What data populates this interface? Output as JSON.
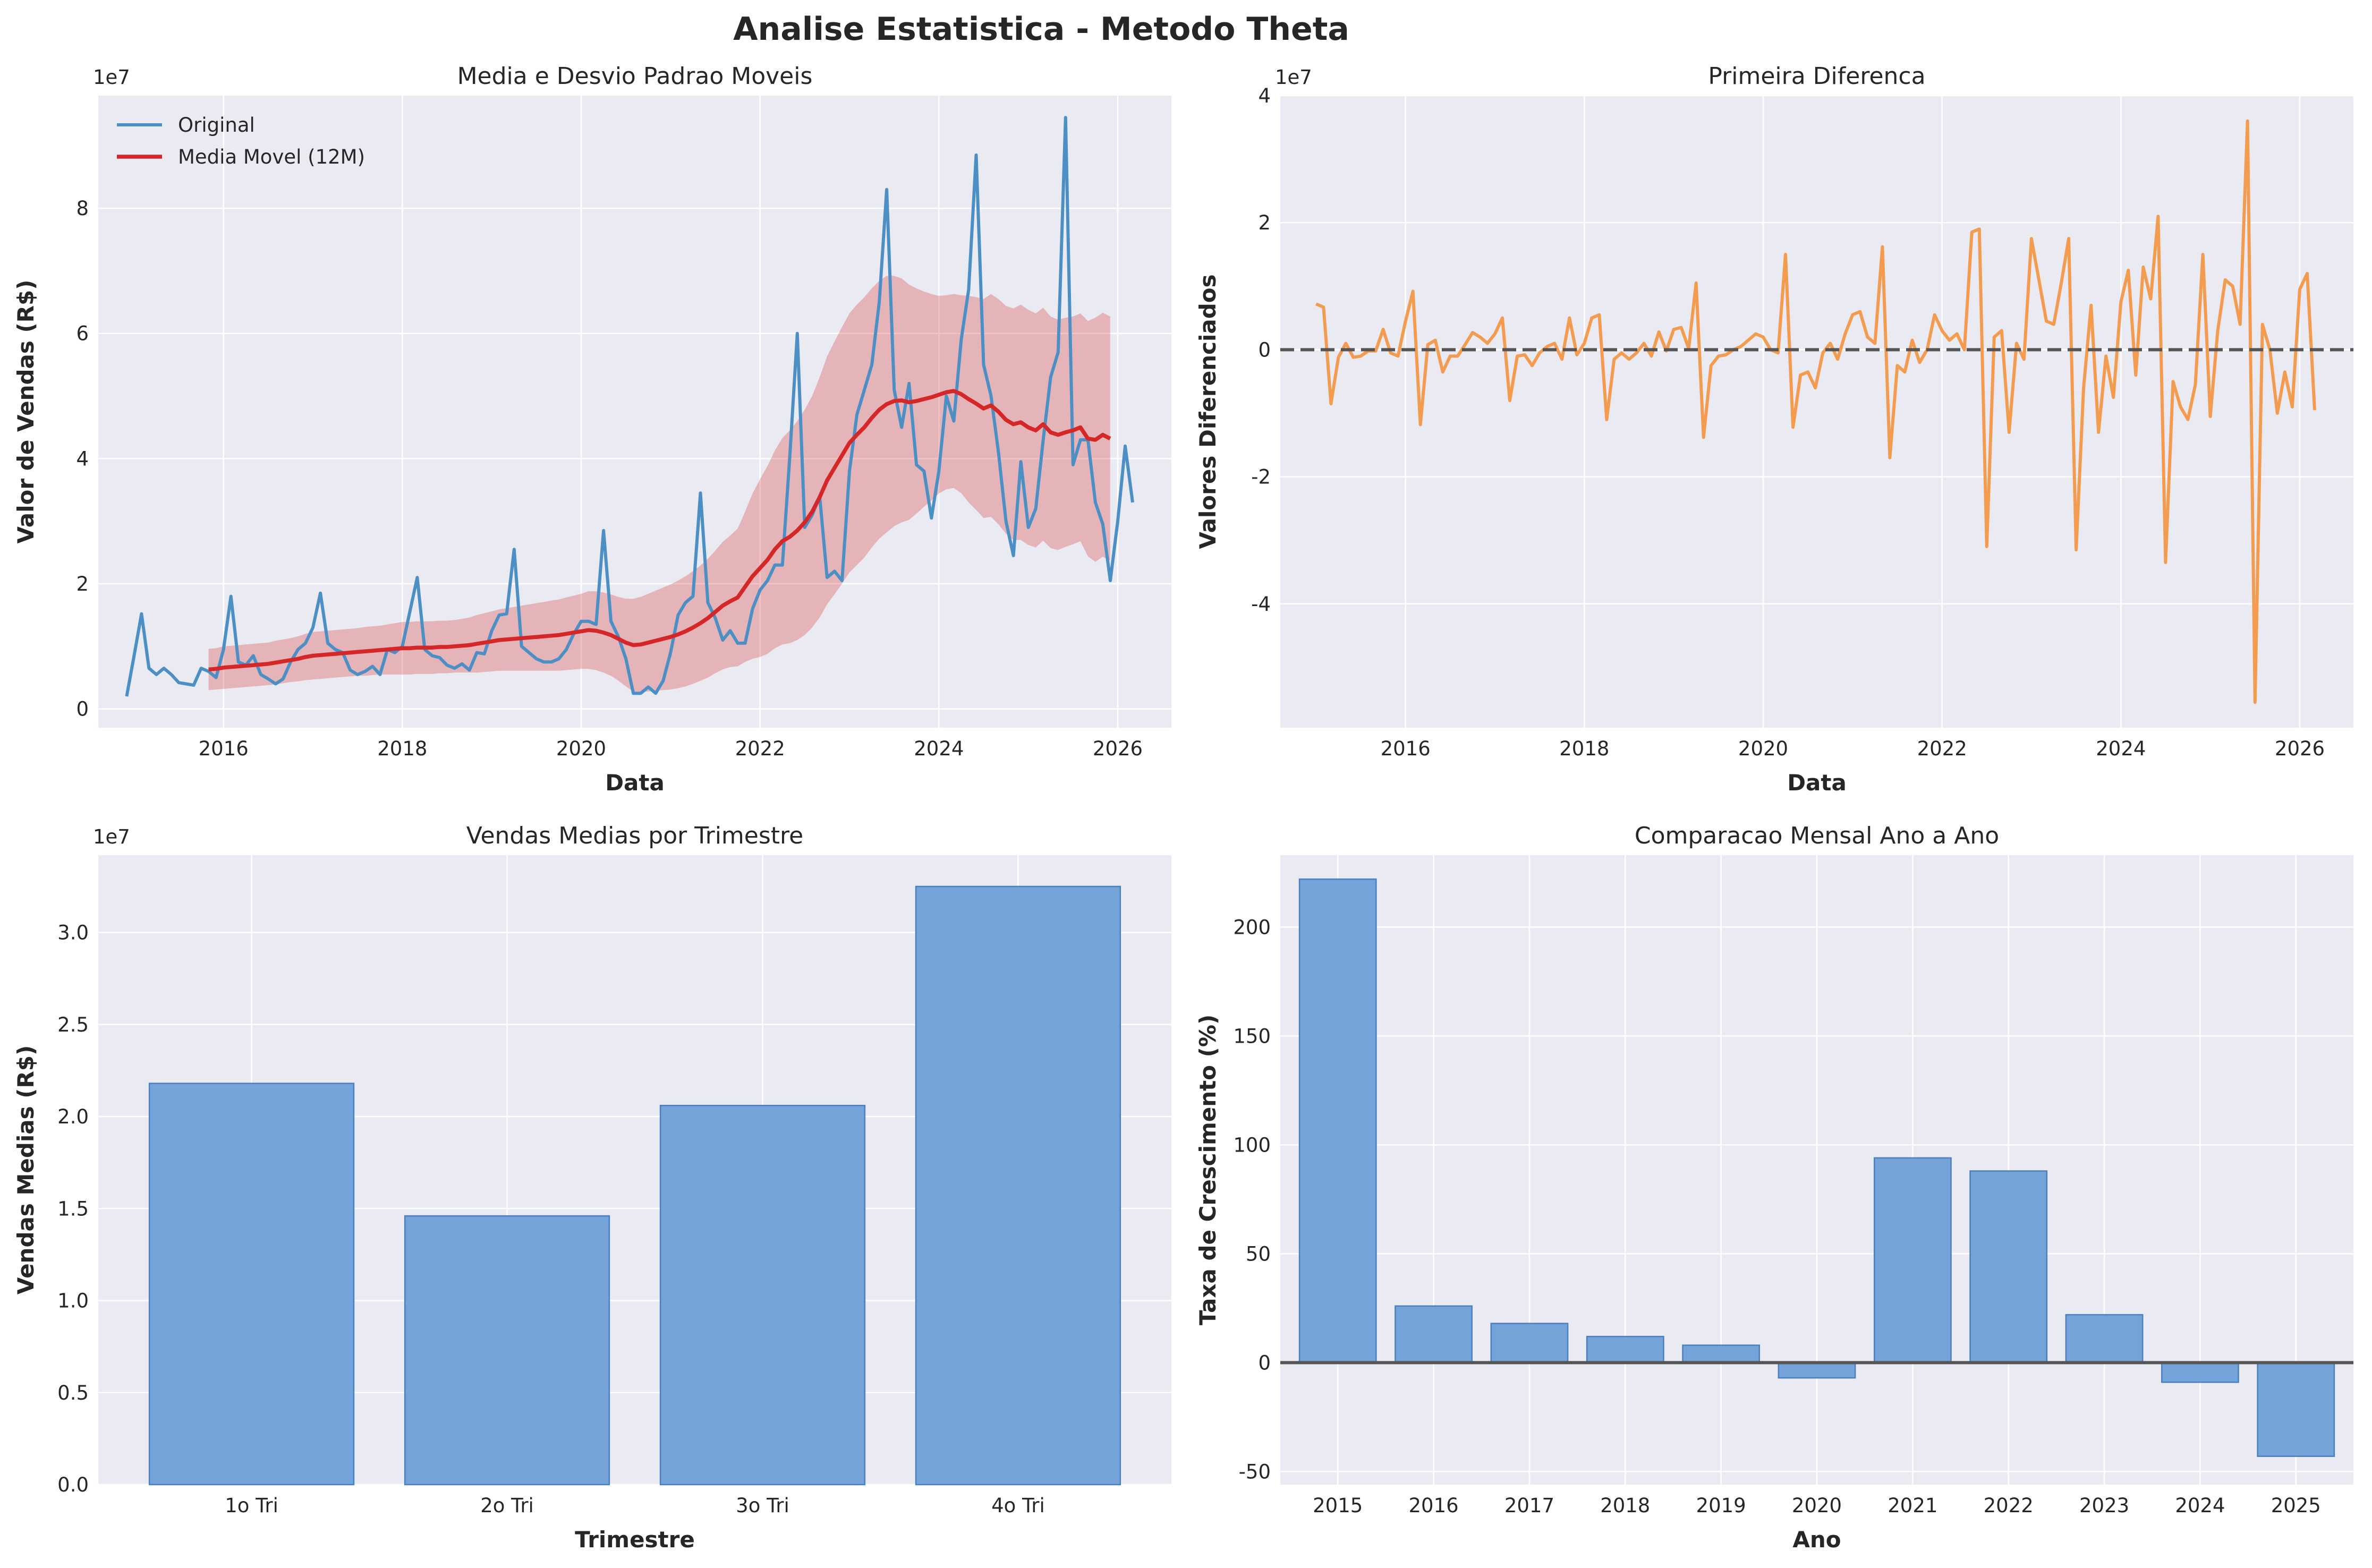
{
  "suptitle": "Analise Estatistica - Metodo Theta",
  "chart_data": [
    {
      "id": "rolling",
      "type": "line",
      "title": "Media e Desvio Padrao Moveis",
      "xlabel": "Data",
      "ylabel": "Valor de Vendas (R$)",
      "y_offset_label": "1e7",
      "x_ticks": [
        2016,
        2018,
        2020,
        2022,
        2024,
        2026
      ],
      "y_ticks": [
        0,
        2,
        4,
        6,
        8
      ],
      "xlim": [
        2014.6,
        2026.6
      ],
      "ylim": [
        -0.3,
        9.8
      ],
      "grid": true,
      "legend_position": "upper left",
      "series": [
        {
          "name": "Original",
          "color": "#4c8fc4",
          "x_start": 2014.917,
          "x_step": 0.08333,
          "values": [
            0.2,
            0.85,
            1.52,
            0.65,
            0.55,
            0.65,
            0.55,
            0.42,
            0.4,
            0.38,
            0.65,
            0.6,
            0.5,
            0.95,
            1.8,
            0.75,
            0.7,
            0.85,
            0.55,
            0.48,
            0.4,
            0.48,
            0.75,
            0.95,
            1.05,
            1.3,
            1.85,
            1.05,
            0.95,
            0.9,
            0.62,
            0.55,
            0.6,
            0.68,
            0.55,
            0.95,
            0.9,
            1.0,
            1.55,
            2.1,
            0.95,
            0.85,
            0.82,
            0.7,
            0.65,
            0.72,
            0.62,
            0.9,
            0.88,
            1.25,
            1.5,
            1.52,
            2.55,
            1.0,
            0.9,
            0.8,
            0.75,
            0.75,
            0.8,
            0.95,
            1.2,
            1.4,
            1.4,
            1.35,
            2.85,
            1.4,
            1.15,
            0.8,
            0.25,
            0.25,
            0.35,
            0.25,
            0.45,
            0.9,
            1.5,
            1.7,
            1.8,
            3.45,
            1.7,
            1.45,
            1.1,
            1.25,
            1.05,
            1.05,
            1.6,
            1.9,
            2.05,
            2.3,
            2.3,
            4.05,
            6.0,
            2.9,
            3.1,
            3.4,
            2.1,
            2.2,
            2.05,
            3.8,
            4.7,
            5.1,
            5.5,
            6.5,
            8.3,
            5.1,
            4.5,
            5.2,
            3.9,
            3.8,
            3.05,
            3.8,
            5.0,
            4.6,
            5.9,
            6.7,
            8.85,
            5.5,
            5.0,
            4.1,
            3.0,
            2.45,
            3.95,
            2.9,
            3.2,
            4.3,
            5.3,
            5.7,
            9.45,
            3.9,
            4.3,
            4.3,
            3.3,
            2.95,
            2.05,
            3.0,
            4.2,
            3.3
          ]
        },
        {
          "name": "Media Movel (12M)",
          "color": "#d62728",
          "x_start": 2015.833,
          "x_step": 0.08333,
          "values": [
            0.63,
            0.64,
            0.66,
            0.67,
            0.68,
            0.69,
            0.7,
            0.71,
            0.72,
            0.74,
            0.76,
            0.78,
            0.8,
            0.83,
            0.85,
            0.86,
            0.87,
            0.88,
            0.89,
            0.9,
            0.91,
            0.92,
            0.93,
            0.94,
            0.95,
            0.96,
            0.97,
            0.97,
            0.98,
            0.98,
            0.98,
            0.99,
            0.99,
            1.0,
            1.01,
            1.02,
            1.04,
            1.06,
            1.08,
            1.1,
            1.11,
            1.12,
            1.13,
            1.14,
            1.15,
            1.16,
            1.17,
            1.18,
            1.2,
            1.22,
            1.24,
            1.26,
            1.25,
            1.22,
            1.18,
            1.12,
            1.06,
            1.02,
            1.03,
            1.06,
            1.09,
            1.12,
            1.15,
            1.19,
            1.24,
            1.3,
            1.37,
            1.45,
            1.55,
            1.65,
            1.72,
            1.78,
            1.95,
            2.12,
            2.25,
            2.38,
            2.55,
            2.68,
            2.75,
            2.85,
            2.98,
            3.15,
            3.38,
            3.65,
            3.85,
            4.05,
            4.25,
            4.38,
            4.5,
            4.65,
            4.78,
            4.87,
            4.92,
            4.93,
            4.9,
            4.92,
            4.95,
            4.98,
            5.02,
            5.06,
            5.08,
            5.03,
            4.95,
            4.88,
            4.8,
            4.85,
            4.75,
            4.62,
            4.55,
            4.58,
            4.5,
            4.45,
            4.55,
            4.42,
            4.38,
            4.42,
            4.45,
            4.5,
            4.32,
            4.3,
            4.38,
            4.32
          ]
        }
      ],
      "band": {
        "name": "Desvio Padrao",
        "color": "#d62728",
        "x_start": 2015.833,
        "x_step": 0.08333,
        "halfwidth": [
          0.33,
          0.33,
          0.34,
          0.34,
          0.34,
          0.34,
          0.34,
          0.34,
          0.34,
          0.35,
          0.35,
          0.35,
          0.36,
          0.37,
          0.38,
          0.38,
          0.38,
          0.38,
          0.38,
          0.38,
          0.38,
          0.39,
          0.39,
          0.39,
          0.4,
          0.41,
          0.42,
          0.42,
          0.42,
          0.42,
          0.42,
          0.42,
          0.42,
          0.42,
          0.43,
          0.44,
          0.46,
          0.47,
          0.48,
          0.49,
          0.5,
          0.51,
          0.52,
          0.53,
          0.54,
          0.55,
          0.56,
          0.57,
          0.58,
          0.59,
          0.6,
          0.62,
          0.63,
          0.64,
          0.65,
          0.67,
          0.7,
          0.74,
          0.76,
          0.78,
          0.8,
          0.82,
          0.84,
          0.86,
          0.88,
          0.9,
          0.92,
          0.95,
          0.98,
          1.02,
          1.05,
          1.1,
          1.2,
          1.32,
          1.42,
          1.5,
          1.58,
          1.65,
          1.7,
          1.75,
          1.8,
          1.85,
          1.92,
          1.98,
          2.02,
          2.05,
          2.07,
          2.08,
          2.08,
          2.07,
          2.06,
          2.05,
          2.0,
          1.95,
          1.88,
          1.8,
          1.72,
          1.65,
          1.58,
          1.55,
          1.55,
          1.58,
          1.65,
          1.7,
          1.75,
          1.78,
          1.8,
          1.82,
          1.85,
          1.88,
          1.88,
          1.87,
          1.86,
          1.85,
          1.84,
          1.83,
          1.82,
          1.82,
          1.88,
          1.95,
          1.95,
          1.95
        ]
      }
    },
    {
      "id": "diff",
      "type": "line",
      "title": "Primeira Diferenca",
      "xlabel": "Data",
      "ylabel": "Valores Diferenciados",
      "y_offset_label": "1e7",
      "x_ticks": [
        2016,
        2018,
        2020,
        2022,
        2024,
        2026
      ],
      "y_ticks": [
        -4,
        -2,
        0,
        2,
        4
      ],
      "xlim": [
        2014.6,
        2026.6
      ],
      "ylim": [
        -5.95,
        4.0
      ],
      "grid": true,
      "zero_line_color": "#555555",
      "series": [
        {
          "name": "Primeira Diferenca",
          "color": "#f39c4f",
          "x_start": 2015.0,
          "x_step": 0.08333,
          "values": [
            0.72,
            0.67,
            -0.85,
            -0.12,
            0.1,
            -0.12,
            -0.1,
            -0.02,
            -0.02,
            0.32,
            -0.05,
            -0.1,
            0.45,
            0.92,
            -1.18,
            0.08,
            0.15,
            -0.35,
            -0.1,
            -0.1,
            0.08,
            0.27,
            0.2,
            0.1,
            0.25,
            0.5,
            -0.8,
            -0.1,
            -0.08,
            -0.25,
            -0.05,
            0.05,
            0.1,
            -0.15,
            0.5,
            -0.08,
            0.1,
            0.5,
            0.55,
            -1.1,
            -0.15,
            -0.05,
            -0.15,
            -0.05,
            0.1,
            -0.1,
            0.28,
            -0.02,
            0.32,
            0.35,
            0.02,
            1.05,
            -1.38,
            -0.25,
            -0.1,
            -0.08,
            0.0,
            0.05,
            0.15,
            0.25,
            0.2,
            0.0,
            -0.05,
            1.5,
            -1.22,
            -0.4,
            -0.35,
            -0.6,
            -0.05,
            0.1,
            -0.15,
            0.25,
            0.55,
            0.6,
            0.2,
            0.1,
            1.62,
            -1.7,
            -0.25,
            -0.35,
            0.15,
            -0.2,
            0.0,
            0.55,
            0.3,
            0.15,
            0.25,
            0.0,
            1.85,
            1.9,
            -3.1,
            0.2,
            0.3,
            -1.3,
            0.1,
            -0.15,
            1.75,
            1.1,
            0.45,
            0.4,
            1.05,
            1.75,
            -3.15,
            -0.6,
            0.7,
            -1.3,
            -0.1,
            -0.75,
            0.75,
            1.25,
            -0.4,
            1.3,
            0.8,
            2.1,
            -3.35,
            -0.5,
            -0.9,
            -1.1,
            -0.55,
            1.5,
            -1.05,
            0.3,
            1.1,
            1.0,
            0.4,
            3.6,
            -5.55,
            0.4,
            0.0,
            -1.0,
            -0.35,
            -0.9,
            0.95,
            1.2,
            -0.95
          ]
        }
      ]
    },
    {
      "id": "quarter",
      "type": "bar",
      "title": "Vendas Medias por Trimestre",
      "xlabel": "Trimestre",
      "ylabel": "Vendas Medias (R$)",
      "y_offset_label": "1e7",
      "categories": [
        "1o Tri",
        "2o Tri",
        "3o Tri",
        "4o Tri"
      ],
      "values": [
        2.18,
        1.46,
        2.06,
        3.25
      ],
      "y_ticks": [
        "0.0",
        "0.5",
        "1.0",
        "1.5",
        "2.0",
        "2.5",
        "3.0"
      ],
      "ylim": [
        0,
        3.42
      ],
      "grid": true,
      "color": "#74a3d9"
    },
    {
      "id": "yoy",
      "type": "bar",
      "title": "Comparacao Mensal Ano a Ano",
      "xlabel": "Ano",
      "ylabel": "Taxa de Crescimento (%)",
      "categories": [
        "2015",
        "2016",
        "2017",
        "2018",
        "2019",
        "2020",
        "2021",
        "2022",
        "2023",
        "2024",
        "2025"
      ],
      "values": [
        222,
        26,
        18,
        12,
        8,
        -7,
        94,
        88,
        22,
        -9,
        -43
      ],
      "y_ticks": [
        -50,
        0,
        50,
        100,
        150,
        200
      ],
      "ylim": [
        -56,
        233
      ],
      "grid": true,
      "color": "#74a3d9",
      "zero_line_color": "#555555"
    }
  ]
}
